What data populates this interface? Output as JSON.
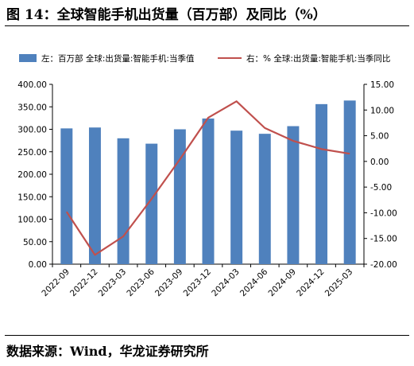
{
  "figure": {
    "title": "图 14：全球智能手机出货量（百万部）及同比（%）",
    "source": "数据来源：Wind，华龙证券研究所"
  },
  "chart_data": {
    "type": "bar",
    "categories": [
      "2022-09",
      "2022-12",
      "2023-03",
      "2023-06",
      "2023-09",
      "2023-12",
      "2024-03",
      "2024-06",
      "2024-09",
      "2024-12",
      "2025-03"
    ],
    "series": [
      {
        "name": "左：百万部 全球:出货量:智能手机:当季值",
        "type": "bar",
        "axis": "left",
        "color": "#4F81BD",
        "values": [
          302,
          304,
          280,
          268,
          300,
          324,
          297,
          290,
          307,
          356,
          364
        ]
      },
      {
        "name": "右：% 全球:出货量:智能手机:当季同比",
        "type": "line",
        "axis": "right",
        "color": "#C0504D",
        "values": [
          -9.8,
          -18.2,
          -14.6,
          -7.3,
          0.4,
          8.5,
          11.7,
          6.5,
          4.0,
          2.4,
          1.5
        ]
      }
    ],
    "y_left": {
      "ylim": [
        0,
        400
      ],
      "ticks": [
        "0.00",
        "50.00",
        "100.00",
        "150.00",
        "200.00",
        "250.00",
        "300.00",
        "350.00",
        "400.00"
      ]
    },
    "y_right": {
      "ylim": [
        -20,
        15
      ],
      "ticks": [
        "-20.00",
        "-15.00",
        "-10.00",
        "-5.00",
        "0.00",
        "5.00",
        "10.00",
        "15.00"
      ]
    },
    "legend": "top",
    "grid": false
  }
}
